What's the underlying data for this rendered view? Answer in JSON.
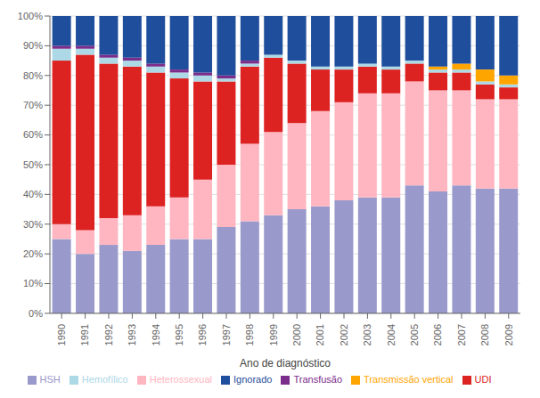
{
  "chart_data": {
    "type": "bar",
    "xlabel": "Ano de diagnóstico",
    "categories": [
      "1990",
      "1991",
      "1992",
      "1993",
      "1994",
      "1995",
      "1996",
      "1997",
      "1998",
      "1999",
      "2000",
      "2001",
      "2002",
      "2003",
      "2004",
      "2005",
      "2006",
      "2007",
      "2008",
      "2009"
    ],
    "series": [
      {
        "name": "HSH",
        "color": "#9999cc",
        "values": [
          25,
          20,
          23,
          21,
          23,
          25,
          25,
          29,
          31,
          33,
          35,
          36,
          38,
          39,
          39,
          43,
          41,
          43,
          42,
          42
        ]
      },
      {
        "name": "Heterossexual",
        "color": "#ffb6c1",
        "values": [
          5,
          8,
          9,
          12,
          13,
          14,
          20,
          21,
          26,
          28,
          29,
          32,
          33,
          35,
          35,
          35,
          34,
          32,
          30,
          30
        ]
      },
      {
        "name": "UDI",
        "color": "#dd2222",
        "values": [
          55,
          59,
          52,
          50,
          45,
          40,
          33,
          28,
          26,
          25,
          20,
          14,
          11,
          9,
          8,
          6,
          6,
          6,
          5,
          4
        ]
      },
      {
        "name": "Hemofílico",
        "color": "#add8e6",
        "values": [
          4,
          2,
          2,
          2,
          2,
          2,
          2,
          1,
          1,
          1,
          1,
          1,
          1,
          1,
          1,
          1,
          1,
          1,
          1,
          1
        ]
      },
      {
        "name": "Transfusão",
        "color": "#7b2d8b",
        "values": [
          1,
          1,
          1,
          1,
          1,
          1,
          1,
          1,
          1,
          0,
          0,
          0,
          0,
          0,
          0,
          0,
          0,
          0,
          0,
          0
        ]
      },
      {
        "name": "Transmissão vertical",
        "color": "#ffa500",
        "values": [
          0,
          0,
          0,
          0,
          0,
          0,
          0,
          0,
          0,
          0,
          0,
          0,
          0,
          0,
          0,
          0,
          1,
          2,
          4,
          3
        ]
      },
      {
        "name": "Ignorado",
        "color": "#1f4e9c",
        "values": [
          10,
          10,
          13,
          14,
          16,
          18,
          19,
          20,
          15,
          13,
          15,
          17,
          17,
          16,
          17,
          15,
          17,
          16,
          18,
          20
        ]
      }
    ],
    "stacked": true,
    "ylim": [
      0,
      100
    ],
    "yticks": [
      {
        "value": 0,
        "label": "0%"
      },
      {
        "value": 10,
        "label": "10%"
      },
      {
        "value": 20,
        "label": "20%"
      },
      {
        "value": 30,
        "label": "30%"
      },
      {
        "value": 40,
        "label": "40%"
      },
      {
        "value": 50,
        "label": "50%"
      },
      {
        "value": 60,
        "label": "60%"
      },
      {
        "value": 70,
        "label": "70%"
      },
      {
        "value": 80,
        "label": "80%"
      },
      {
        "value": 90,
        "label": "90%"
      },
      {
        "value": 100,
        "label": "100%"
      }
    ],
    "grid": true
  }
}
